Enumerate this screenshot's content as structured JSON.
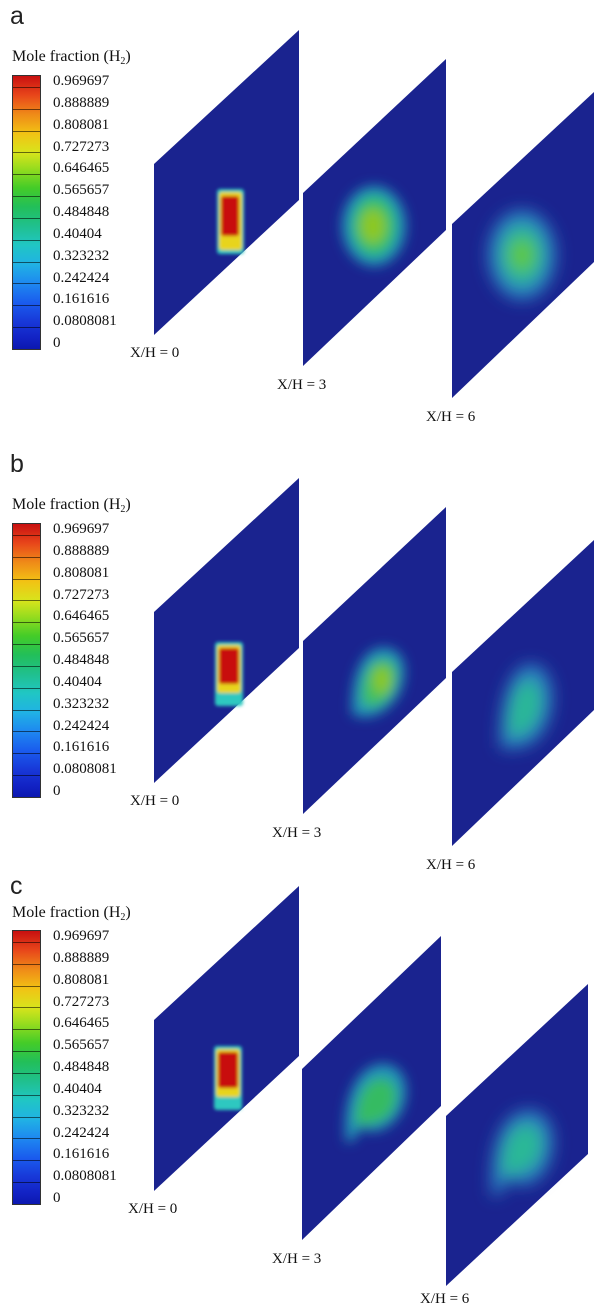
{
  "colors": {
    "plane_background": "#1a238f",
    "colormap": [
      "#0c18b0",
      "#1838d8",
      "#1e88f0",
      "#20c6c4",
      "#22bf5a",
      "#44cc28",
      "#d8e41c",
      "#f2c214",
      "#ef8a18",
      "#c81010"
    ]
  },
  "colorbar": {
    "title_main": "Mole fraction (H",
    "title_sub": "2",
    "title_end": ")",
    "labels": [
      "0.969697",
      "0.888889",
      "0.808081",
      "0.727273",
      "0.646465",
      "0.565657",
      "0.484848",
      "0.40404",
      "0.323232",
      "0.242424",
      "0.161616",
      "0.0808081",
      "0"
    ]
  },
  "panels": [
    {
      "letter": "a",
      "planes": [
        "X/H = 0",
        "X/H = 3",
        "X/H = 6"
      ]
    },
    {
      "letter": "b",
      "planes": [
        "X/H = 0",
        "X/H = 3",
        "X/H = 6"
      ]
    },
    {
      "letter": "c",
      "planes": [
        "X/H = 0",
        "X/H = 3",
        "X/H = 6"
      ]
    }
  ]
}
